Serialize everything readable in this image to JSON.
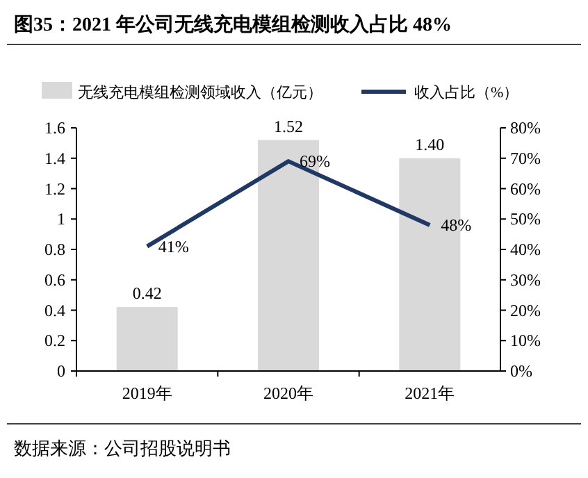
{
  "chart_data": {
    "type": "bar",
    "title": "图35：2021 年公司无线充电模组检测收入占比 48%",
    "categories": [
      "2019年",
      "2020年",
      "2021年"
    ],
    "series": [
      {
        "name": "无线充电模组检测领域收入（亿元）",
        "color": "#d9d9d9",
        "values": [
          0.42,
          1.52,
          1.4
        ],
        "value_labels": [
          "0.42",
          "1.52",
          "1.40"
        ]
      },
      {
        "name": "收入占比（%）",
        "type": "line",
        "axis": "y2",
        "color": "#203864",
        "values": [
          41,
          69,
          48
        ],
        "value_labels": [
          "41%",
          "69%",
          "48%"
        ]
      }
    ],
    "ylim": [
      0,
      1.6
    ],
    "yticks": [
      0,
      0.2,
      0.4,
      0.6,
      0.8,
      1,
      1.2,
      1.4,
      1.6
    ],
    "y2lim": [
      0,
      80
    ],
    "y2ticks": [
      {
        "value": 0,
        "label": "0%"
      },
      {
        "value": 10,
        "label": "10%"
      },
      {
        "value": 20,
        "label": "20%"
      },
      {
        "value": 30,
        "label": "30%"
      },
      {
        "value": 40,
        "label": "40%"
      },
      {
        "value": 50,
        "label": "50%"
      },
      {
        "value": 60,
        "label": "60%"
      },
      {
        "value": 70,
        "label": "70%"
      },
      {
        "value": 80,
        "label": "80%"
      }
    ],
    "legend": "top",
    "grid": false,
    "annotations": [
      "数据来源：公司招股说明书"
    ]
  }
}
